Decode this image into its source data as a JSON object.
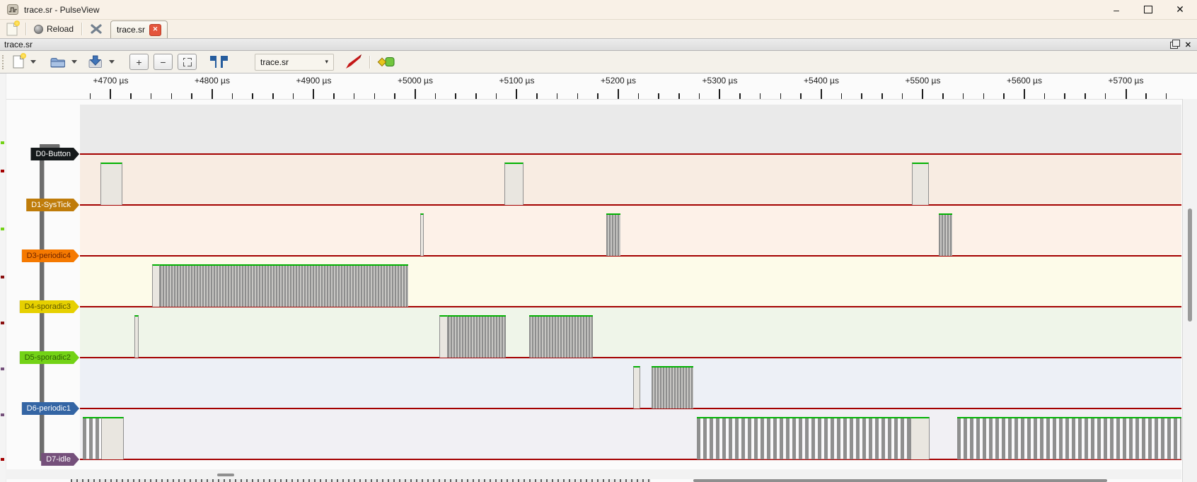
{
  "window": {
    "title": "trace.sr - PulseView",
    "minimize_glyph": "–",
    "close_glyph": "✕"
  },
  "main_toolbar": {
    "reload_label": "Reload",
    "tab_label": "trace.sr",
    "tab_close_glyph": "✕"
  },
  "dock": {
    "title": "trace.sr",
    "close_glyph": "✕"
  },
  "session_toolbar": {
    "zoom_in_label": "+",
    "zoom_out_label": "−",
    "file_combo_value": "trace.sr",
    "combo_caret": "▾"
  },
  "ruler": {
    "unit": "µs",
    "labels": [
      {
        "t": 4700,
        "text": "+4700 µs"
      },
      {
        "t": 4800,
        "text": "+4800 µs"
      },
      {
        "t": 4900,
        "text": "+4900 µs"
      },
      {
        "t": 5000,
        "text": "+5000 µs"
      },
      {
        "t": 5100,
        "text": "+5100 µs"
      },
      {
        "t": 5200,
        "text": "+5200 µs"
      },
      {
        "t": 5300,
        "text": "+5300 µs"
      },
      {
        "t": 5400,
        "text": "+5400 µs"
      },
      {
        "t": 5500,
        "text": "+5500 µs"
      },
      {
        "t": 5600,
        "text": "+5600 µs"
      },
      {
        "t": 5700,
        "text": "+5700 µs"
      }
    ],
    "minor_step_us": 20,
    "major_step_us": 100,
    "view_start_us": 4669.7,
    "view_end_us": 5754.7
  },
  "waveform": {
    "low_color": "#a40000",
    "high_color": "#00b100",
    "edge_color": "#8f8f8f",
    "channels": [
      {
        "name": "D0-Button",
        "label_bg": "#15191b",
        "label_fg": "#ffffff",
        "band": "#eaeaea",
        "segments": []
      },
      {
        "name": "D1-SysTick",
        "label_bg": "#bf7c0a",
        "label_fg": "#ffffff",
        "band": "#f8ece2",
        "segments": [
          {
            "type": "high",
            "t1": 4689.9,
            "t2": 4711.5
          },
          {
            "type": "high",
            "t1": 5087.8,
            "t2": 5106.6
          },
          {
            "type": "high",
            "t1": 5489.2,
            "t2": 5505.9
          }
        ]
      },
      {
        "name": "D3-periodic4",
        "label_bg": "#f57900",
        "label_fg": "#6e2400",
        "band": "#fdf1e8",
        "segments": [
          {
            "type": "high",
            "t1": 5004.9,
            "t2": 5008.4
          },
          {
            "type": "dense",
            "t1": 5188.2,
            "t2": 5202.1
          },
          {
            "type": "dense",
            "t1": 5515.7,
            "t2": 5528.9
          }
        ]
      },
      {
        "name": "D4-sporadic3",
        "label_bg": "#e6d000",
        "label_fg": "#5f5800",
        "band": "#fdfbe9",
        "segments": [
          {
            "type": "high",
            "t1": 4740.8,
            "t2": 4748.4
          },
          {
            "type": "dense",
            "t1": 4748.4,
            "t2": 4993.0
          }
        ]
      },
      {
        "name": "D5-sporadic2",
        "label_bg": "#73d216",
        "label_fg": "#2c5c03",
        "band": "#eff5e9",
        "segments": [
          {
            "type": "high",
            "t1": 4723.3,
            "t2": 4727.5
          },
          {
            "type": "high",
            "t1": 5023.7,
            "t2": 5032.1
          },
          {
            "type": "dense",
            "t1": 5032.1,
            "t2": 5089.2
          },
          {
            "type": "dense",
            "t1": 5112.2,
            "t2": 5174.9
          }
        ]
      },
      {
        "name": "D6-periodic1",
        "label_bg": "#3465a4",
        "label_fg": "#ffffff",
        "band": "#edf0f6",
        "segments": [
          {
            "type": "high",
            "t1": 5214.6,
            "t2": 5221.6
          },
          {
            "type": "dense",
            "t1": 5232.8,
            "t2": 5273.9
          }
        ]
      },
      {
        "name": "D7-idle",
        "label_bg": "#75507b",
        "label_fg": "#ffffff",
        "band": "#f1f0f4",
        "segments": [
          {
            "type": "dense_coarse",
            "t1": 4672.5,
            "t2": 4690.6
          },
          {
            "type": "high",
            "t1": 4690.6,
            "t2": 4712.9
          },
          {
            "type": "dense_coarse",
            "t1": 5277.4,
            "t2": 5487.8
          },
          {
            "type": "high",
            "t1": 5487.8,
            "t2": 5506.6
          },
          {
            "type": "dense_coarse",
            "t1": 5533.8,
            "t2": 5754.7
          }
        ]
      }
    ]
  }
}
